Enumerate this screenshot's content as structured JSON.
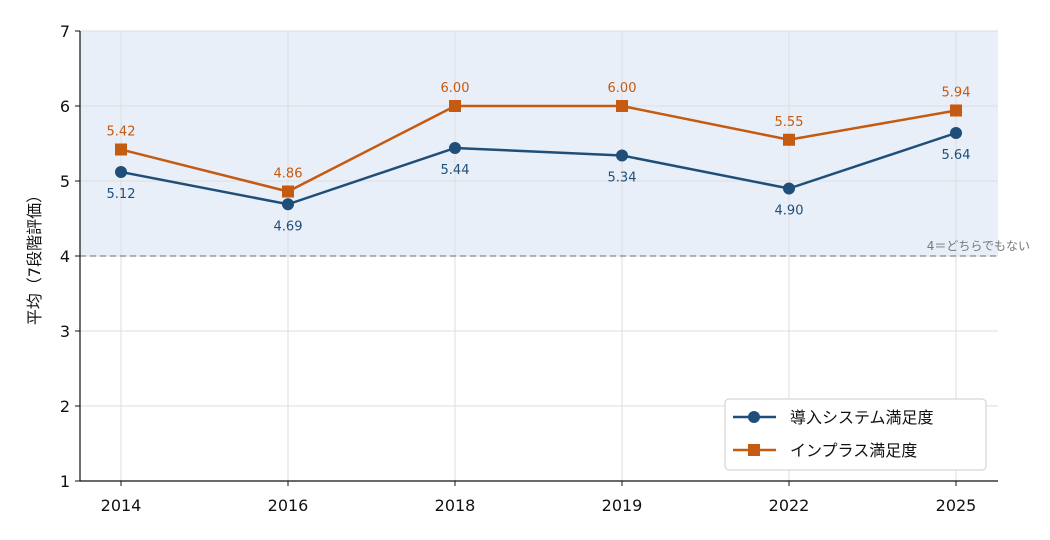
{
  "chart_data": {
    "type": "line",
    "categories": [
      "2014",
      "2016",
      "2018",
      "2019",
      "2022",
      "2025"
    ],
    "series": [
      {
        "name": "導入システム満足度",
        "values": [
          5.12,
          4.69,
          5.44,
          5.34,
          4.9,
          5.64
        ],
        "labels": [
          "5.12",
          "4.69",
          "5.44",
          "5.34",
          "4.90",
          "5.64"
        ],
        "color": "#1f4e79",
        "marker": "circle"
      },
      {
        "name": "インプラス満足度",
        "values": [
          5.42,
          4.86,
          6.0,
          6.0,
          5.55,
          5.94
        ],
        "labels": [
          "5.42",
          "4.86",
          "6.00",
          "6.00",
          "5.55",
          "5.94"
        ],
        "color": "#c55a11",
        "marker": "square"
      }
    ],
    "ylabel": "平均（7段階評価）",
    "ylim": [
      1,
      7
    ],
    "yticks": [
      "1",
      "2",
      "3",
      "4",
      "5",
      "6",
      "7"
    ],
    "reference_line": {
      "value": 4,
      "label": "4＝どちらでもない"
    },
    "shaded_band": [
      4,
      7
    ],
    "grid": true,
    "legend_position": "lower-right"
  }
}
